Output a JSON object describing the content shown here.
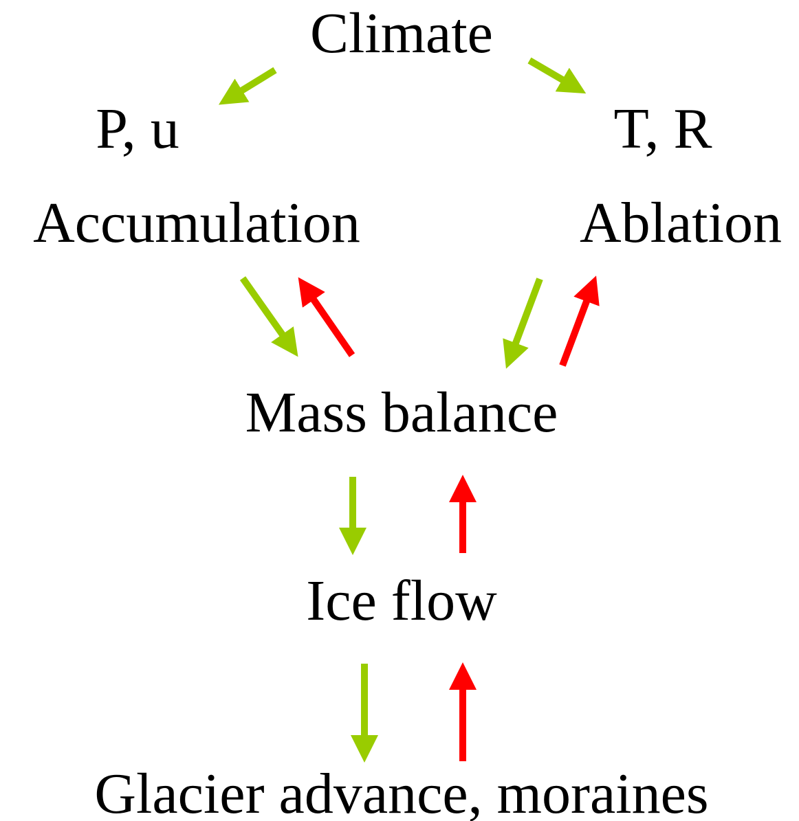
{
  "nodes": [
    {
      "id": "climate",
      "label": "Climate"
    },
    {
      "id": "pu",
      "label": "P, u"
    },
    {
      "id": "tr",
      "label": "T, R"
    },
    {
      "id": "accumulation",
      "label": "Accumulation"
    },
    {
      "id": "ablation",
      "label": "Ablation"
    },
    {
      "id": "mass",
      "label": "Mass balance"
    },
    {
      "id": "ice",
      "label": "Ice flow"
    },
    {
      "id": "glacier",
      "label": "Glacier advance, moraines"
    }
  ]
}
